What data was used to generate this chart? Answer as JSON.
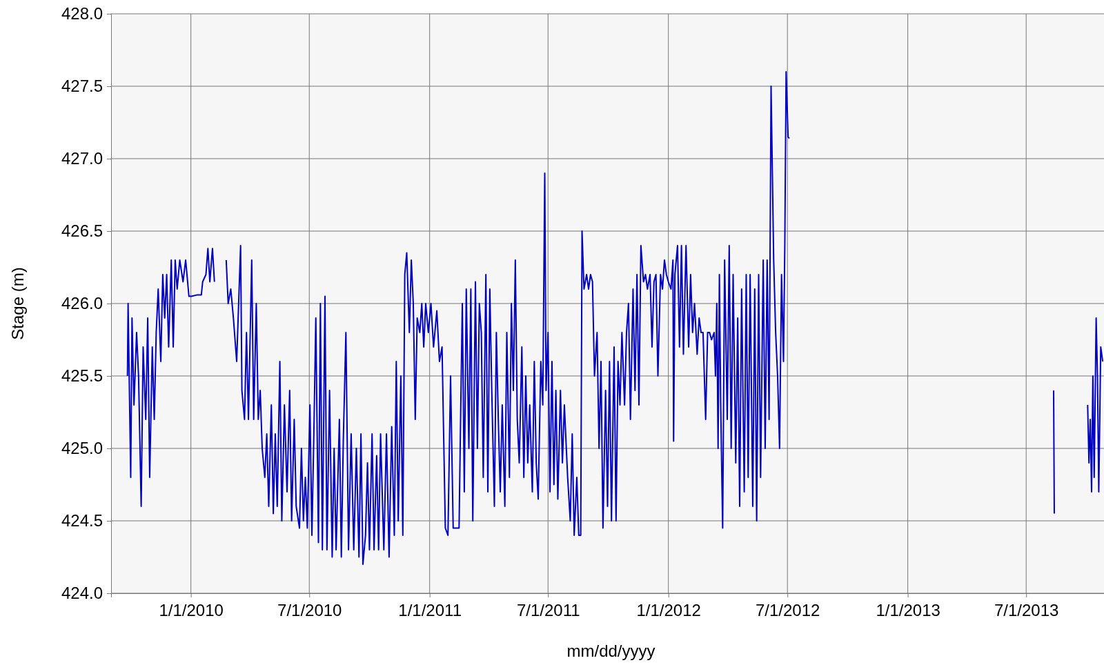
{
  "chart_data": {
    "type": "line",
    "xlabel": "mm/dd/yyyy",
    "ylabel": "Stage (m)",
    "grid": true,
    "marker": "none",
    "line_style": "solid",
    "xlim": [
      "2009-09-01",
      "2013-10-28"
    ],
    "xticks": [
      {
        "value": "2010-01-01",
        "label": "1/1/2010"
      },
      {
        "value": "2010-07-01",
        "label": "7/1/2010"
      },
      {
        "value": "2011-01-01",
        "label": "1/1/2011"
      },
      {
        "value": "2011-07-01",
        "label": "7/1/2011"
      },
      {
        "value": "2012-01-01",
        "label": "1/1/2012"
      },
      {
        "value": "2012-07-01",
        "label": "7/1/2012"
      },
      {
        "value": "2013-01-01",
        "label": "1/1/2013"
      },
      {
        "value": "2013-07-01",
        "label": "7/1/2013"
      }
    ],
    "ylim": [
      424,
      428
    ],
    "yticks": [
      {
        "value": 424,
        "label": "424.0"
      },
      {
        "value": 424.5,
        "label": "424.5"
      },
      {
        "value": 425,
        "label": "425.0"
      },
      {
        "value": 425.5,
        "label": "425.5"
      },
      {
        "value": 426,
        "label": "426.0"
      },
      {
        "value": 426.5,
        "label": "426.5"
      },
      {
        "value": 427,
        "label": "427.0"
      },
      {
        "value": 427.5,
        "label": "427.5"
      },
      {
        "value": 428,
        "label": "428.0"
      }
    ],
    "series": [
      {
        "color": "#0000c0",
        "x": [
          "2009-09-26",
          "2009-09-27",
          "2009-09-29",
          "2009-10-01",
          "2009-10-03",
          "2009-10-06",
          "2009-10-10",
          "2009-10-13",
          "2009-10-17",
          "2009-10-20",
          "2009-10-24",
          "2009-10-27",
          "2009-10-30",
          "2009-11-03",
          "2009-11-06",
          "2009-11-09",
          "2009-11-12",
          "2009-11-16",
          "2009-11-19",
          "2009-11-22",
          "2009-11-25",
          "2009-11-28",
          "2009-12-02",
          "2009-12-05",
          "2009-12-08",
          "2009-12-11",
          "2009-12-15",
          "2009-12-20",
          "2009-12-24",
          "2009-12-29",
          "2010-01-02",
          "2010-01-11",
          "2010-01-17",
          "2010-01-19",
          "2010-01-24",
          "2010-01-27",
          "2010-01-30",
          "2010-02-03",
          "2010-02-06",
          "2010-02-15",
          "2010-02-24",
          "2010-02-27",
          "2010-03-03",
          "2010-03-07",
          "2010-03-12",
          "2010-03-15",
          "2010-03-18",
          "2010-03-20",
          "2010-03-24",
          "2010-03-27",
          "2010-03-30",
          "2010-04-04",
          "2010-04-07",
          "2010-04-11",
          "2010-04-14",
          "2010-04-17",
          "2010-04-20",
          "2010-04-24",
          "2010-04-27",
          "2010-04-30",
          "2010-05-04",
          "2010-05-07",
          "2010-05-10",
          "2010-05-13",
          "2010-05-17",
          "2010-05-20",
          "2010-05-24",
          "2010-05-28",
          "2010-06-01",
          "2010-06-04",
          "2010-06-08",
          "2010-06-11",
          "2010-06-16",
          "2010-06-19",
          "2010-06-22",
          "2010-06-25",
          "2010-06-28",
          "2010-07-02",
          "2010-07-05",
          "2010-07-08",
          "2010-07-11",
          "2010-07-15",
          "2010-07-18",
          "2010-07-21",
          "2010-07-25",
          "2010-07-28",
          "2010-08-01",
          "2010-08-05",
          "2010-08-08",
          "2010-08-11",
          "2010-08-16",
          "2010-08-19",
          "2010-08-22",
          "2010-08-26",
          "2010-08-30",
          "2010-09-03",
          "2010-09-07",
          "2010-09-11",
          "2010-09-15",
          "2010-09-18",
          "2010-09-21",
          "2010-09-25",
          "2010-09-28",
          "2010-10-01",
          "2010-10-05",
          "2010-10-08",
          "2010-10-12",
          "2010-10-15",
          "2010-10-18",
          "2010-10-23",
          "2010-10-27",
          "2010-10-31",
          "2010-11-04",
          "2010-11-08",
          "2010-11-11",
          "2010-11-14",
          "2010-11-18",
          "2010-11-21",
          "2010-11-24",
          "2010-11-27",
          "2010-12-01",
          "2010-12-04",
          "2010-12-07",
          "2010-12-10",
          "2010-12-13",
          "2010-12-17",
          "2010-12-20",
          "2010-12-23",
          "2010-12-26",
          "2010-12-30",
          "2011-01-03",
          "2011-01-07",
          "2011-01-12",
          "2011-01-16",
          "2011-01-20",
          "2011-01-25",
          "2011-01-29",
          "2011-02-02",
          "2011-02-06",
          "2011-02-10",
          "2011-02-15",
          "2011-02-17",
          "2011-02-20",
          "2011-02-23",
          "2011-02-26",
          "2011-03-02",
          "2011-03-05",
          "2011-03-08",
          "2011-03-12",
          "2011-03-15",
          "2011-03-18",
          "2011-03-21",
          "2011-03-24",
          "2011-03-28",
          "2011-03-31",
          "2011-04-03",
          "2011-04-06",
          "2011-04-10",
          "2011-04-13",
          "2011-04-16",
          "2011-04-19",
          "2011-04-22",
          "2011-04-26",
          "2011-04-29",
          "2011-05-03",
          "2011-05-06",
          "2011-05-09",
          "2011-05-12",
          "2011-05-15",
          "2011-05-18",
          "2011-05-22",
          "2011-05-25",
          "2011-05-28",
          "2011-05-31",
          "2011-06-03",
          "2011-06-07",
          "2011-06-10",
          "2011-06-13",
          "2011-06-16",
          "2011-06-20",
          "2011-06-23",
          "2011-06-26",
          "2011-06-28",
          "2011-07-01",
          "2011-07-04",
          "2011-07-07",
          "2011-07-10",
          "2011-07-13",
          "2011-07-16",
          "2011-07-20",
          "2011-07-23",
          "2011-07-26",
          "2011-07-31",
          "2011-08-04",
          "2011-08-07",
          "2011-08-10",
          "2011-08-14",
          "2011-08-17",
          "2011-08-20",
          "2011-08-22",
          "2011-08-25",
          "2011-08-29",
          "2011-09-01",
          "2011-09-04",
          "2011-09-07",
          "2011-09-10",
          "2011-09-14",
          "2011-09-17",
          "2011-09-20",
          "2011-09-23",
          "2011-09-27",
          "2011-09-30",
          "2011-10-03",
          "2011-10-06",
          "2011-10-10",
          "2011-10-13",
          "2011-10-16",
          "2011-10-19",
          "2011-10-22",
          "2011-10-26",
          "2011-10-29",
          "2011-11-01",
          "2011-11-04",
          "2011-11-08",
          "2011-11-11",
          "2011-11-14",
          "2011-11-17",
          "2011-11-20",
          "2011-11-24",
          "2011-11-27",
          "2011-11-30",
          "2011-12-04",
          "2011-12-07",
          "2011-12-10",
          "2011-12-13",
          "2011-12-16",
          "2011-12-20",
          "2011-12-23",
          "2011-12-26",
          "2011-12-29",
          "2012-01-01",
          "2012-01-05",
          "2012-01-08",
          "2012-01-09",
          "2012-01-11",
          "2012-01-15",
          "2012-01-18",
          "2012-01-21",
          "2012-01-24",
          "2012-01-28",
          "2012-02-01",
          "2012-02-04",
          "2012-02-07",
          "2012-02-10",
          "2012-02-14",
          "2012-02-17",
          "2012-02-20",
          "2012-02-23",
          "2012-02-27",
          "2012-03-01",
          "2012-03-04",
          "2012-03-07",
          "2012-03-11",
          "2012-03-13",
          "2012-03-15",
          "2012-03-17",
          "2012-03-19",
          "2012-03-21",
          "2012-03-24",
          "2012-03-27",
          "2012-03-31",
          "2012-04-03",
          "2012-04-06",
          "2012-04-09",
          "2012-04-13",
          "2012-04-16",
          "2012-04-19",
          "2012-04-22",
          "2012-04-26",
          "2012-04-29",
          "2012-05-02",
          "2012-05-05",
          "2012-05-09",
          "2012-05-12",
          "2012-05-15",
          "2012-05-18",
          "2012-05-21",
          "2012-05-25",
          "2012-05-28",
          "2012-05-31",
          "2012-06-03",
          "2012-06-06",
          "2012-06-10",
          "2012-06-13",
          "2012-06-16",
          "2012-06-19",
          "2012-06-22",
          "2012-06-25",
          "2012-06-27",
          "2012-06-29",
          "2012-07-02",
          "2012-07-04",
          "2013-01-01",
          "2013-08-12",
          "2013-08-13",
          "2013-09-15",
          "2013-10-03",
          "2013-10-05",
          "2013-10-07",
          "2013-10-09",
          "2013-10-11",
          "2013-10-13",
          "2013-10-16",
          "2013-10-18",
          "2013-10-20",
          "2013-10-23",
          "2013-10-26"
        ],
        "values": [
          425.5,
          426.0,
          425.4,
          424.8,
          425.9,
          425.3,
          425.8,
          425.5,
          424.6,
          425.7,
          425.2,
          425.9,
          424.8,
          425.7,
          425.2,
          425.8,
          426.1,
          425.6,
          426.2,
          425.9,
          426.2,
          425.7,
          426.3,
          425.7,
          426.3,
          426.1,
          426.3,
          426.15,
          426.3,
          426.05,
          426.05,
          426.06,
          426.06,
          426.15,
          426.2,
          426.38,
          426.15,
          426.38,
          426.15,
          null,
          426.3,
          426.0,
          426.1,
          425.9,
          425.6,
          426.0,
          426.4,
          425.4,
          425.2,
          425.8,
          425.2,
          426.3,
          425.2,
          426.0,
          425.2,
          425.4,
          425.0,
          424.8,
          425.1,
          424.6,
          425.3,
          424.55,
          425.1,
          424.6,
          425.6,
          424.5,
          425.3,
          424.7,
          425.4,
          424.5,
          425.2,
          424.6,
          424.45,
          425.0,
          424.5,
          424.8,
          424.45,
          425.3,
          424.4,
          425.1,
          425.9,
          424.35,
          426.0,
          424.3,
          426.05,
          424.3,
          425.4,
          424.25,
          425.0,
          424.3,
          425.2,
          424.25,
          425.05,
          425.8,
          424.3,
          425.1,
          424.3,
          425.0,
          424.25,
          425.1,
          424.2,
          424.4,
          424.9,
          424.3,
          425.1,
          424.3,
          424.95,
          424.3,
          425.1,
          424.3,
          425.1,
          424.25,
          425.15,
          424.4,
          425.6,
          424.5,
          425.5,
          424.4,
          426.2,
          426.35,
          425.8,
          426.3,
          426.0,
          425.2,
          425.9,
          425.8,
          426.0,
          425.7,
          426.0,
          425.8,
          426.0,
          425.7,
          425.95,
          425.6,
          425.7,
          424.45,
          424.4,
          425.5,
          424.45,
          424.45,
          424.45,
          425.1,
          426.0,
          424.7,
          426.1,
          425.0,
          426.1,
          424.5,
          426.15,
          425.0,
          426.0,
          425.8,
          424.8,
          426.2,
          424.7,
          426.1,
          425.4,
          424.6,
          425.8,
          425.2,
          424.7,
          425.3,
          424.6,
          425.8,
          424.8,
          426.0,
          425.4,
          426.3,
          425.2,
          424.9,
          425.7,
          424.8,
          425.5,
          424.9,
          425.3,
          424.7,
          425.6,
          424.9,
          424.65,
          425.6,
          425.3,
          426.9,
          425.4,
          425.8,
          424.7,
          425.6,
          424.75,
          425.4,
          424.65,
          425.4,
          424.9,
          425.3,
          424.8,
          424.5,
          425.1,
          424.4,
          424.8,
          424.4,
          424.4,
          426.5,
          426.1,
          426.2,
          426.1,
          426.2,
          426.15,
          425.5,
          425.8,
          425.0,
          425.6,
          424.45,
          425.4,
          424.6,
          425.6,
          424.5,
          425.7,
          424.5,
          425.6,
          425.3,
          425.8,
          425.3,
          425.8,
          426.0,
          425.2,
          426.1,
          425.4,
          426.2,
          425.3,
          426.4,
          426.15,
          426.2,
          426.1,
          426.2,
          425.7,
          426.15,
          426.2,
          425.5,
          426.2,
          426.1,
          426.3,
          426.2,
          426.15,
          426.1,
          426.3,
          425.05,
          426.2,
          426.4,
          425.7,
          426.4,
          425.65,
          426.4,
          425.7,
          426.2,
          425.8,
          426.0,
          425.65,
          425.9,
          425.8,
          425.8,
          425.2,
          425.8,
          425.8,
          425.75,
          425.8,
          425.5,
          426.0,
          425.0,
          426.2,
          425.3,
          424.45,
          426.3,
          425.2,
          426.4,
          425.0,
          426.2,
          424.9,
          425.9,
          424.6,
          426.1,
          424.7,
          426.2,
          424.8,
          426.2,
          424.6,
          426.1,
          424.5,
          426.2,
          424.8,
          426.3,
          425.0,
          426.3,
          425.2,
          427.5,
          426.3,
          425.8,
          425.5,
          425.0,
          426.2,
          425.6,
          426.4,
          427.6,
          427.15,
          427.14,
          null,
          425.4,
          424.55,
          null,
          425.3,
          424.9,
          425.2,
          424.7,
          425.5,
          424.8,
          425.9,
          425.5,
          424.7,
          425.7,
          425.6
        ]
      }
    ]
  }
}
